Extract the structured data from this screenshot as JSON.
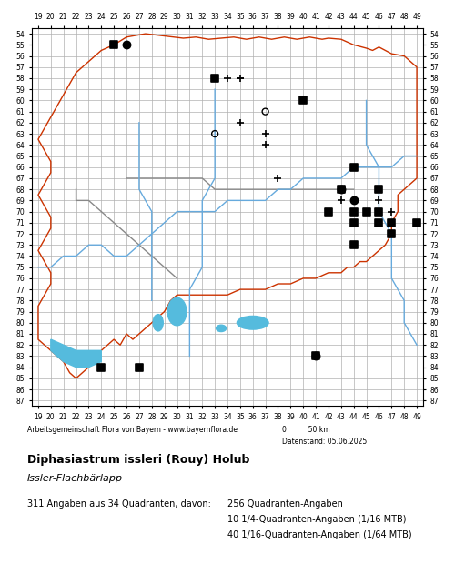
{
  "chart_data": {
    "type": "map_scatter",
    "title": "Diphasiastrum issleri (Rouy) Holub",
    "subtitle": "Issler-Flachbärlapp",
    "annotations": [
      "Arbeitsgemeinschaft Flora von Bayern - www.bayernflora.de",
      "0          50 km",
      "Datenstand: 05.06.2025",
      "311 Angaben aus 34 Quadranten, davon:",
      "256 Quadranten-Angaben",
      "10 1/4-Quadranten-Angaben (1/16 MTB)",
      "40 1/16-Quadranten-Angaben (1/64 MTB)"
    ],
    "xlim": [
      18.5,
      49.5
    ],
    "ylim": [
      87.5,
      53.5
    ],
    "xticks": [
      19,
      20,
      21,
      22,
      23,
      24,
      25,
      26,
      27,
      28,
      29,
      30,
      31,
      32,
      33,
      34,
      35,
      36,
      37,
      38,
      39,
      40,
      41,
      42,
      43,
      44,
      45,
      46,
      47,
      48,
      49
    ],
    "yticks": [
      54,
      55,
      56,
      57,
      58,
      59,
      60,
      61,
      62,
      63,
      64,
      65,
      66,
      67,
      68,
      69,
      70,
      71,
      72,
      73,
      74,
      75,
      76,
      77,
      78,
      79,
      80,
      81,
      82,
      83,
      84,
      85,
      86,
      87
    ],
    "grid": true,
    "series": [
      {
        "type": "line",
        "color": "#cc3300",
        "x": [
          26.0,
          27.5,
          29.0,
          30.5,
          31.5,
          32.5,
          33.5,
          34.5,
          35.5,
          36.5,
          37.5,
          38.5,
          39.5,
          40.5,
          41.5,
          42.0,
          43.0,
          44.0,
          45.0,
          45.5,
          46.0,
          46.5,
          47.0,
          48.0,
          48.5,
          49.0,
          49.0,
          49.0,
          49.0,
          49.0,
          49.0,
          49.0,
          49.0,
          49.0,
          49.0,
          49.0,
          48.5,
          48.0,
          47.5,
          47.5,
          47.5,
          47.0,
          47.0,
          46.5,
          46.0,
          45.5,
          45.0,
          44.5,
          44.0,
          43.5,
          43.0,
          42.0,
          41.0,
          40.0,
          39.0,
          38.0,
          37.0,
          36.0,
          35.0,
          34.0,
          33.0,
          32.0,
          31.0,
          30.0,
          29.5,
          29.0,
          28.5,
          28.0,
          27.5,
          27.0,
          26.5,
          26.0,
          25.5,
          25.0,
          24.5,
          24.0,
          23.5,
          23.0,
          22.5,
          22.0,
          21.5,
          21.0,
          20.5,
          20.0,
          19.5,
          19.0,
          19.0,
          19.0,
          19.0,
          19.5,
          20.0,
          20.0,
          19.5,
          19.0,
          19.5,
          20.0,
          20.0,
          19.5,
          19.0,
          19.5,
          20.0,
          20.0,
          19.5,
          19.0,
          19.5,
          20.0,
          20.5,
          21.0,
          21.5,
          22.0,
          23.0,
          24.0,
          25.0,
          26.0
        ],
        "y": [
          54.3,
          54.0,
          54.2,
          54.4,
          54.3,
          54.5,
          54.4,
          54.3,
          54.5,
          54.3,
          54.5,
          54.3,
          54.5,
          54.3,
          54.5,
          54.4,
          54.5,
          55.0,
          55.3,
          55.5,
          55.2,
          55.5,
          55.8,
          56.0,
          56.5,
          57.0,
          58.0,
          59.0,
          60.0,
          61.0,
          62.0,
          63.0,
          64.0,
          65.0,
          66.0,
          67.0,
          67.5,
          68.0,
          68.5,
          69.0,
          70.0,
          71.0,
          72.0,
          73.0,
          73.5,
          74.0,
          74.5,
          74.5,
          75.0,
          75.0,
          75.5,
          75.5,
          76.0,
          76.0,
          76.5,
          76.5,
          77.0,
          77.0,
          77.0,
          77.5,
          77.5,
          77.5,
          77.5,
          77.5,
          78.0,
          79.0,
          79.5,
          80.0,
          80.5,
          81.0,
          81.5,
          81.0,
          82.0,
          81.5,
          82.0,
          82.5,
          83.0,
          84.0,
          84.5,
          85.0,
          84.5,
          83.5,
          83.0,
          82.5,
          82.0,
          81.5,
          80.5,
          79.5,
          78.5,
          77.5,
          76.5,
          75.5,
          74.5,
          73.5,
          72.5,
          71.5,
          70.5,
          69.5,
          68.5,
          67.5,
          66.5,
          65.5,
          64.5,
          63.5,
          62.5,
          61.5,
          60.5,
          59.5,
          58.5,
          57.5,
          56.5,
          55.5,
          55.0,
          54.3
        ]
      },
      {
        "type": "line",
        "color": "#888888",
        "x": [
          26,
          27,
          28,
          29,
          30,
          31,
          32,
          33,
          34,
          35,
          36,
          37,
          38,
          39,
          40,
          41,
          42,
          43,
          44
        ],
        "y": [
          67,
          67,
          67,
          67,
          67,
          67,
          67,
          68,
          68,
          68,
          68,
          68,
          68,
          68,
          68,
          68,
          68,
          68,
          68
        ]
      },
      {
        "type": "line",
        "color": "#888888",
        "x": [
          22,
          22,
          23,
          24,
          25,
          26,
          27,
          28,
          29,
          30
        ],
        "y": [
          68,
          69,
          69,
          70,
          71,
          72,
          73,
          74,
          75,
          76
        ]
      },
      {
        "type": "line",
        "color": "#66aadd",
        "x": [
          19,
          20,
          21,
          22,
          23,
          24,
          25,
          26,
          27,
          28,
          29,
          30,
          31,
          32,
          33,
          34,
          35,
          36,
          37,
          38,
          39,
          40,
          41,
          42,
          43,
          44,
          45,
          46,
          47,
          48,
          49
        ],
        "y": [
          75,
          75,
          74,
          74,
          73,
          73,
          74,
          74,
          73,
          72,
          71,
          70,
          70,
          70,
          70,
          69,
          69,
          69,
          69,
          68,
          68,
          67,
          67,
          67,
          67,
          66,
          66,
          66,
          66,
          65,
          65
        ]
      },
      {
        "type": "line",
        "color": "#66aadd",
        "x": [
          33,
          33,
          33,
          33,
          33,
          32,
          32,
          32,
          32,
          31,
          31,
          31,
          31
        ],
        "y": [
          59,
          61,
          63,
          65,
          67,
          69,
          71,
          73,
          75,
          77,
          79,
          81,
          83
        ]
      },
      {
        "type": "line",
        "color": "#66aadd",
        "x": [
          45,
          45,
          45,
          46,
          46,
          46,
          47,
          47,
          47,
          48,
          48,
          49
        ],
        "y": [
          60,
          62,
          64,
          66,
          68,
          70,
          72,
          74,
          76,
          78,
          80,
          82
        ]
      },
      {
        "type": "line",
        "color": "#66aadd",
        "x": [
          27,
          27,
          27,
          27,
          28,
          28,
          28,
          28,
          28
        ],
        "y": [
          62,
          64,
          66,
          68,
          70,
          72,
          74,
          76,
          78
        ]
      },
      {
        "type": "ellipse",
        "color": "#55bbdd",
        "center": [
          36,
          80
        ],
        "width": 2.5,
        "height": 1.2
      },
      {
        "type": "ellipse",
        "color": "#55bbdd",
        "center": [
          30,
          79
        ],
        "width": 1.5,
        "height": 2.5
      },
      {
        "type": "fill",
        "color": "#55bbdd",
        "x": [
          20,
          21,
          22,
          23,
          24,
          24,
          23,
          22,
          21,
          20
        ],
        "y": [
          81.5,
          82,
          82.5,
          82.5,
          82.5,
          83.5,
          84,
          84,
          83.5,
          82.5
        ]
      },
      {
        "type": "ellipse",
        "color": "#55bbdd",
        "center": [
          28.5,
          80
        ],
        "width": 0.8,
        "height": 1.5
      },
      {
        "type": "ellipse",
        "color": "#55bbdd",
        "center": [
          33.5,
          80.5
        ],
        "width": 0.8,
        "height": 0.6
      },
      {
        "type": "scatter",
        "color": "black",
        "marker": "square",
        "x": [
          25,
          33,
          40,
          44,
          43,
          46,
          42,
          44,
          45,
          46,
          44,
          46,
          47,
          49,
          44,
          47,
          24,
          27,
          41
        ],
        "y": [
          55,
          58,
          60,
          66,
          68,
          68,
          70,
          70,
          70,
          70,
          71,
          71,
          71,
          71,
          73,
          72,
          84,
          84,
          83
        ]
      },
      {
        "type": "scatter",
        "color": "black",
        "marker": "circle",
        "x": [
          26,
          43,
          44,
          41
        ],
        "y": [
          55,
          68,
          69,
          83
        ]
      },
      {
        "type": "scatter",
        "color": "black",
        "marker": "open_circle",
        "x": [
          37,
          33,
          41
        ],
        "y": [
          61,
          63,
          83
        ]
      },
      {
        "type": "scatter",
        "color": "black",
        "marker": "plus",
        "x": [
          34,
          35,
          35,
          37,
          37,
          38,
          43,
          44,
          47,
          46
        ],
        "y": [
          58,
          58,
          62,
          63,
          64,
          67,
          69,
          70,
          70,
          69
        ]
      },
      {
        "type": "scatter",
        "color": "black",
        "marker": "minus",
        "x": [
          33,
          35
        ],
        "y": [
          58,
          58
        ]
      }
    ]
  }
}
